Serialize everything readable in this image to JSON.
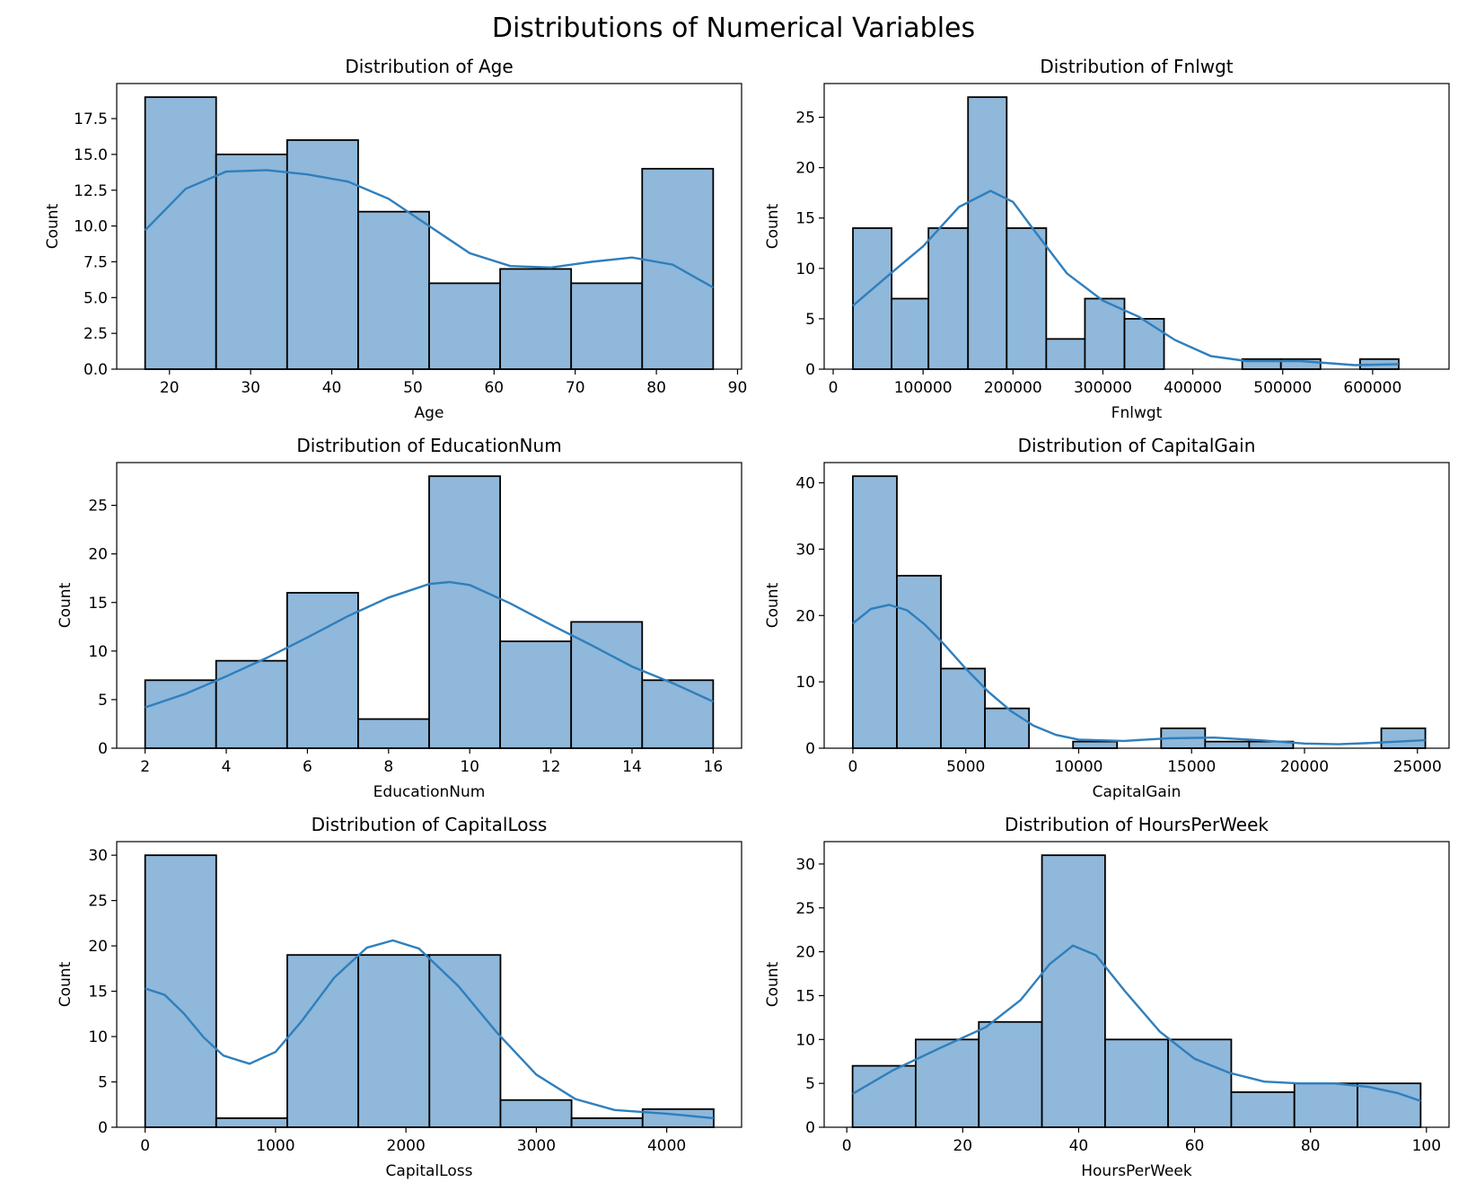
{
  "figure": {
    "title": "Distributions of Numerical Variables"
  },
  "colors": {
    "bar_fill": "#8fb8da",
    "bar_edge": "#000000",
    "kde_line": "#2f7fbd"
  },
  "chart_data": [
    {
      "type": "bar",
      "title": "Distribution of Age",
      "xlabel": "Age",
      "ylabel": "Count",
      "xlim": [
        13.5,
        90.5
      ],
      "ylim": [
        0,
        19.95
      ],
      "xticks": [
        20,
        30,
        40,
        50,
        60,
        70,
        80,
        90
      ],
      "yticks": [
        0.0,
        2.5,
        5.0,
        7.5,
        10.0,
        12.5,
        15.0,
        17.5
      ],
      "ytick_decimals": 1,
      "bin_edges": [
        17,
        25.75,
        34.5,
        43.25,
        52,
        60.75,
        69.5,
        78.25,
        87
      ],
      "counts": [
        19,
        15,
        16,
        11,
        6,
        7,
        6,
        14
      ],
      "kde": {
        "x": [
          17,
          22,
          27,
          32,
          37,
          42,
          47,
          52,
          57,
          62,
          67,
          72,
          77,
          82,
          87
        ],
        "y": [
          9.7,
          12.6,
          13.8,
          13.9,
          13.6,
          13.1,
          11.9,
          10.0,
          8.1,
          7.2,
          7.1,
          7.5,
          7.8,
          7.3,
          5.7
        ]
      }
    },
    {
      "type": "bar",
      "title": "Distribution of Fnlwgt",
      "xlabel": "Fnlwgt",
      "ylabel": "Count",
      "xlim": [
        -10000,
        685000
      ],
      "ylim": [
        0,
        28.35
      ],
      "xticks": [
        0,
        100000,
        200000,
        300000,
        400000,
        500000,
        600000
      ],
      "yticks": [
        0,
        5,
        10,
        15,
        20,
        25
      ],
      "ytick_decimals": 0,
      "bin_edges": [
        22000,
        65000,
        106000,
        150000,
        193000,
        237000,
        280000,
        324000,
        368000,
        411000,
        455000,
        498000,
        542000,
        586000,
        629000
      ],
      "counts": [
        14,
        7,
        14,
        27,
        14,
        3,
        7,
        5,
        0,
        0,
        1,
        1,
        0,
        1
      ],
      "kde": {
        "x": [
          22000,
          60000,
          100000,
          140000,
          175000,
          200000,
          225000,
          260000,
          300000,
          340000,
          380000,
          420000,
          460000,
          520000,
          580000,
          629000
        ],
        "y": [
          6.3,
          9.2,
          12.2,
          16.1,
          17.7,
          16.6,
          13.6,
          9.5,
          6.8,
          5.2,
          2.9,
          1.3,
          0.8,
          0.8,
          0.4,
          0.5
        ]
      }
    },
    {
      "type": "bar",
      "title": "Distribution of EducationNum",
      "xlabel": "EducationNum",
      "ylabel": "Count",
      "xlim": [
        1.3,
        16.7
      ],
      "ylim": [
        0,
        29.4
      ],
      "xticks": [
        2,
        4,
        6,
        8,
        10,
        12,
        14,
        16
      ],
      "yticks": [
        0,
        5,
        10,
        15,
        20,
        25
      ],
      "ytick_decimals": 0,
      "bin_edges": [
        2,
        3.75,
        5.5,
        7.25,
        9,
        10.75,
        12.5,
        14.25,
        16
      ],
      "counts": [
        7,
        9,
        16,
        3,
        28,
        11,
        13,
        7
      ],
      "kde": {
        "x": [
          2,
          3,
          4,
          5,
          6,
          7,
          8,
          9,
          9.5,
          10,
          11,
          12,
          13,
          14,
          15,
          16
        ],
        "y": [
          4.2,
          5.6,
          7.4,
          9.3,
          11.4,
          13.6,
          15.5,
          16.9,
          17.1,
          16.8,
          14.9,
          12.7,
          10.6,
          8.4,
          6.7,
          4.8
        ]
      }
    },
    {
      "type": "bar",
      "title": "Distribution of CapitalGain",
      "xlabel": "CapitalGain",
      "ylabel": "Count",
      "xlim": [
        -1270,
        26400
      ],
      "ylim": [
        0,
        43.05
      ],
      "xticks": [
        0,
        5000,
        10000,
        15000,
        20000,
        25000
      ],
      "yticks": [
        0,
        10,
        20,
        30,
        40
      ],
      "ytick_decimals": 0,
      "bin_edges": [
        0,
        1950,
        3900,
        5850,
        7800,
        9750,
        11700,
        13650,
        15600,
        17550,
        19500,
        21450,
        23400,
        25350
      ],
      "counts": [
        41,
        26,
        12,
        6,
        0,
        1,
        0,
        3,
        1,
        1,
        0,
        0,
        3
      ],
      "kde": {
        "x": [
          0,
          800,
          1600,
          2400,
          3200,
          4000,
          5000,
          6000,
          7000,
          8000,
          9000,
          10000,
          12000,
          14000,
          16000,
          18000,
          20000,
          21500,
          23000,
          25350
        ],
        "y": [
          18.8,
          21.0,
          21.6,
          20.8,
          18.6,
          15.8,
          12.0,
          8.5,
          5.6,
          3.4,
          2.0,
          1.3,
          1.1,
          1.5,
          1.6,
          1.2,
          0.7,
          0.6,
          0.8,
          1.2
        ]
      }
    },
    {
      "type": "bar",
      "title": "Distribution of CapitalLoss",
      "xlabel": "CapitalLoss",
      "ylabel": "Count",
      "xlim": [
        -218,
        4574
      ],
      "ylim": [
        0,
        31.5
      ],
      "xticks": [
        0,
        1000,
        2000,
        3000,
        4000
      ],
      "yticks": [
        0,
        5,
        10,
        15,
        20,
        25,
        30
      ],
      "ytick_decimals": 0,
      "bin_edges": [
        0,
        545,
        1090,
        1635,
        2180,
        2725,
        3270,
        3815,
        4360
      ],
      "counts": [
        30,
        1,
        19,
        19,
        19,
        3,
        1,
        2
      ],
      "kde": {
        "x": [
          0,
          150,
          300,
          450,
          600,
          800,
          1000,
          1200,
          1450,
          1700,
          1900,
          2100,
          2400,
          2700,
          3000,
          3300,
          3600,
          4000,
          4360
        ],
        "y": [
          15.3,
          14.6,
          12.5,
          9.9,
          7.9,
          7.0,
          8.3,
          11.7,
          16.5,
          19.8,
          20.6,
          19.7,
          15.6,
          10.4,
          5.8,
          3.1,
          1.9,
          1.5,
          1.0
        ]
      }
    },
    {
      "type": "bar",
      "title": "Distribution of HoursPerWeek",
      "xlabel": "HoursPerWeek",
      "ylabel": "Count",
      "xlim": [
        -3.9,
        103.9
      ],
      "ylim": [
        0,
        32.55
      ],
      "xticks": [
        0,
        20,
        40,
        60,
        80,
        100
      ],
      "yticks": [
        0,
        5,
        10,
        15,
        20,
        25,
        30
      ],
      "ytick_decimals": 0,
      "bin_edges": [
        1,
        11.89,
        22.78,
        33.67,
        44.56,
        55.44,
        66.33,
        77.22,
        88.11,
        99
      ],
      "counts": [
        7,
        10,
        12,
        31,
        10,
        10,
        4,
        5,
        5
      ],
      "kde": {
        "x": [
          1,
          8,
          16,
          24,
          30,
          35,
          39,
          43,
          48,
          54,
          60,
          66,
          72,
          78,
          84,
          90,
          95,
          99
        ],
        "y": [
          3.8,
          6.5,
          9.0,
          11.4,
          14.5,
          18.6,
          20.7,
          19.6,
          15.5,
          10.9,
          7.8,
          6.2,
          5.2,
          5.0,
          5.0,
          4.6,
          3.9,
          3.0
        ]
      }
    }
  ]
}
